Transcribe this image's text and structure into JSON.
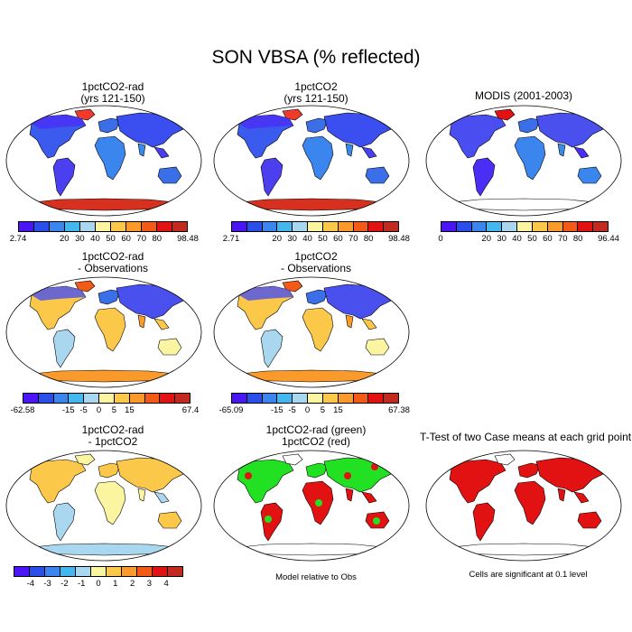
{
  "title": "SON VBSA (% reflected)",
  "panels": [
    {
      "title1": "1pctCO2-rad",
      "title2": "(yrs 121-150)",
      "style": "abs_rad"
    },
    {
      "title1": "1pctCO2",
      "title2": "(yrs 121-150)",
      "style": "abs"
    },
    {
      "title1": "MODIS (2001-2003)",
      "title2": "",
      "style": "obs"
    },
    {
      "title1": "1pctCO2-rad",
      "title2": "- Observations",
      "style": "diff"
    },
    {
      "title1": "1pctCO2",
      "title2": "- Observations",
      "style": "diff"
    },
    {
      "title1": "1pctCO2-rad",
      "title2": "- 1pctCO2",
      "style": "diff2"
    },
    {
      "title1": "1pctCO2-rad (green)",
      "title2": "1pctCO2 (red)",
      "style": "compare"
    },
    {
      "title1": "T-Test of two Case means at each grid point",
      "title2": "",
      "style": "ttest"
    }
  ],
  "colorbars": {
    "abs_colors": [
      "#4b16f5",
      "#2a4fe8",
      "#3a86ee",
      "#42b8ef",
      "#a9d7ef",
      "#fbf5a2",
      "#fbc84a",
      "#f99a2a",
      "#f25a16",
      "#e21212",
      "#c2291f"
    ],
    "diff_colors": [
      "#4b16f5",
      "#2a4fe8",
      "#3a86ee",
      "#42b8ef",
      "#a9d7ef",
      "#fbf5a2",
      "#fbc84a",
      "#f99a2a",
      "#f25a16",
      "#e21212",
      "#c2291f"
    ],
    "rad_labels": [
      "2.74",
      "20",
      "30",
      "40",
      "50",
      "60",
      "70",
      "80",
      "98.48"
    ],
    "co2_labels": [
      "2.71",
      "20",
      "30",
      "40",
      "50",
      "60",
      "70",
      "80",
      "98.48"
    ],
    "obs_labels": [
      "0",
      "20",
      "30",
      "40",
      "50",
      "60",
      "70",
      "80",
      "96.44"
    ],
    "diff_rad_labels": [
      "-62.58",
      "-15",
      "-5",
      "0",
      "5",
      "15",
      "67.4"
    ],
    "diff_co2_labels": [
      "-65.09",
      "-15",
      "-5",
      "0",
      "5",
      "15",
      "67.38"
    ],
    "diff2_labels": [
      "-4",
      "-3",
      "-2",
      "-1",
      "0",
      "1",
      "2",
      "3",
      "4"
    ]
  },
  "notes": {
    "model_relative": "Model relative to Obs",
    "significant": "Cells are significant at 0.1 level"
  }
}
